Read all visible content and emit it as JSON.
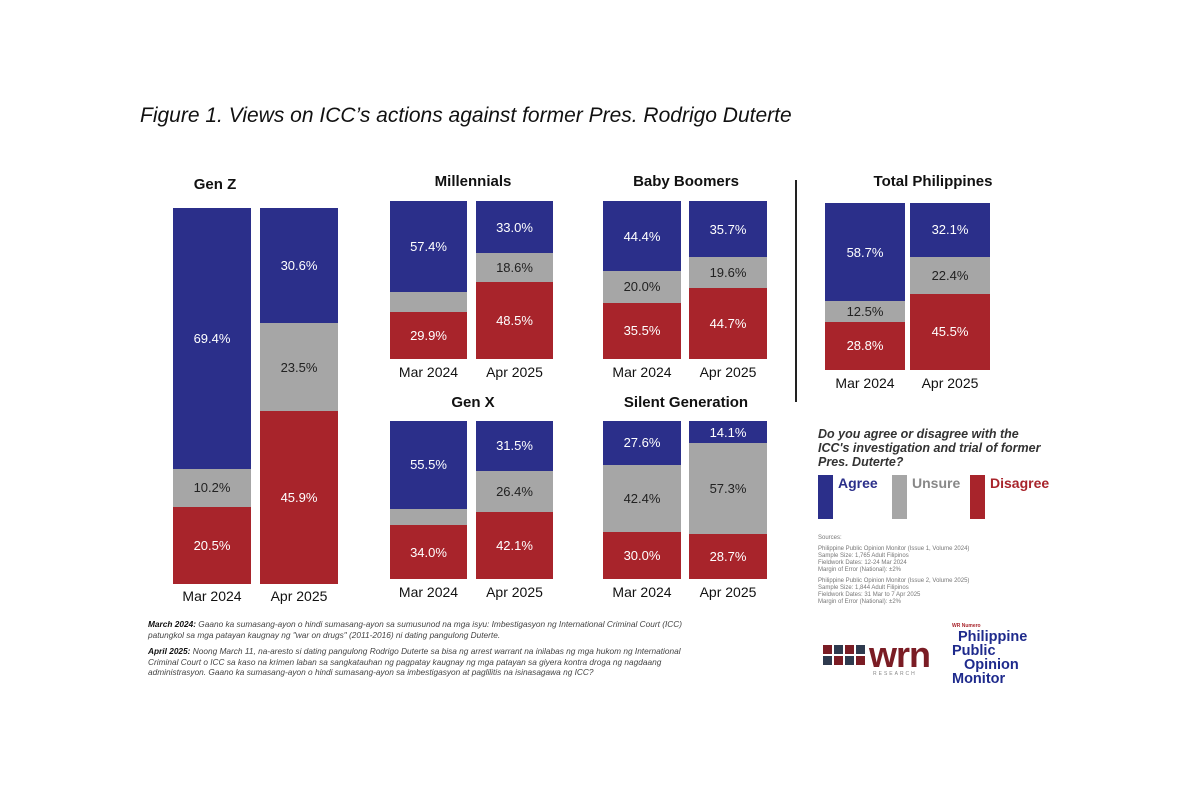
{
  "title": "Figure 1. Views on ICC’s actions against former Pres. Rodrigo Duterte",
  "chart_data": {
    "type": "stacked-bar",
    "stack_order": [
      "Agree",
      "Unsure",
      "Disagree"
    ],
    "colors": {
      "Agree": "#2b2f8a",
      "Unsure": "#a6a6a6",
      "Disagree": "#a8242b"
    },
    "categories": [
      "Mar 2024",
      "Apr 2025"
    ],
    "panels": [
      {
        "title": "Gen Z",
        "bars": [
          {
            "label": "Mar 2024",
            "Agree": 69.4,
            "Unsure": 10.2,
            "Disagree": 20.5
          },
          {
            "label": "Apr 2025",
            "Agree": 30.6,
            "Unsure": 23.5,
            "Disagree": 45.9
          }
        ]
      },
      {
        "title": "Millennials",
        "bars": [
          {
            "label": "Mar 2024",
            "Agree": 57.4,
            "Unsure": null,
            "Disagree": 29.9
          },
          {
            "label": "Apr 2025",
            "Agree": 33.0,
            "Unsure": 18.6,
            "Disagree": 48.5
          }
        ]
      },
      {
        "title": "Baby Boomers",
        "bars": [
          {
            "label": "Mar 2024",
            "Agree": 44.4,
            "Unsure": 20.0,
            "Disagree": 35.5
          },
          {
            "label": "Apr 2025",
            "Agree": 35.7,
            "Unsure": 19.6,
            "Disagree": 44.7
          }
        ]
      },
      {
        "title": "Gen X",
        "bars": [
          {
            "label": "Mar 2024",
            "Agree": 55.5,
            "Unsure": null,
            "Disagree": 34.0
          },
          {
            "label": "Apr 2025",
            "Agree": 31.5,
            "Unsure": 26.4,
            "Disagree": 42.1
          }
        ]
      },
      {
        "title": "Silent Generation",
        "bars": [
          {
            "label": "Mar 2024",
            "Agree": 27.6,
            "Unsure": 42.4,
            "Disagree": 30.0
          },
          {
            "label": "Apr 2025",
            "Agree": 14.1,
            "Unsure": 57.3,
            "Disagree": 28.7
          }
        ]
      },
      {
        "title": "Total Philippines",
        "bars": [
          {
            "label": "Mar 2024",
            "Agree": 58.7,
            "Unsure": 12.5,
            "Disagree": 28.8
          },
          {
            "label": "Apr 2025",
            "Agree": 32.1,
            "Unsure": 22.4,
            "Disagree": 45.5
          }
        ]
      }
    ]
  },
  "legend": {
    "question": "Do you agree or disagree with the ICC's investigation and trial of former Pres. Duterte?",
    "items": [
      {
        "label": "Agree",
        "color": "#2b2f8a"
      },
      {
        "label": "Unsure",
        "color": "#a6a6a6"
      },
      {
        "label": "Disagree",
        "color": "#a8242b"
      }
    ]
  },
  "notes": [
    {
      "lead": "March 2024:",
      "text": " Gaano ka sumasang-ayon o hindi sumasang-ayon sa sumusunod na mga isyu: Imbestigasyon ng International Criminal Court (ICC) patungkol sa mga patayan kaugnay ng \"war on drugs\" (2011-2016) ni dating pangulong Duterte."
    },
    {
      "lead": "April 2025:",
      "text": " Noong March 11, na-aresto si dating pangulong Rodrigo Duterte sa bisa ng arrest warrant na inilabas ng mga hukom ng International Criminal Court o ICC sa kaso na krimen laban sa sangkatauhan ng pagpatay kaugnay ng mga patayan sa giyera kontra droga ng nagdaang administrasyon. Gaano ka sumasang-ayon o hindi sumasang-ayon sa imbestigasyon at paglilitis na isinasagawa ng ICC?"
    }
  ],
  "sources": {
    "heading": "Sources:",
    "blocks": [
      [
        "Philippine Public Opinion Monitor (Issue 1, Volume 2024)",
        "Sample Size: 1,765 Adult Filipinos",
        "Fieldwork Dates: 12-24 Mar 2024",
        "Margin of Error (National): ±2%"
      ],
      [
        "Philippine Public Opinion Monitor (Issue 2, Volume 2025)",
        "Sample Size: 1,844 Adult Filipinos",
        "Fieldwork Dates: 31 Mar to 7 Apr 2025",
        "Margin of Error (National): ±2%"
      ]
    ]
  },
  "logos": {
    "wrn": "wrn",
    "wrn_sub": "RESEARCH",
    "ppom_small": "WR Numero",
    "ppom": [
      "Philippine",
      "Public",
      "Opinion",
      "Monitor"
    ]
  }
}
